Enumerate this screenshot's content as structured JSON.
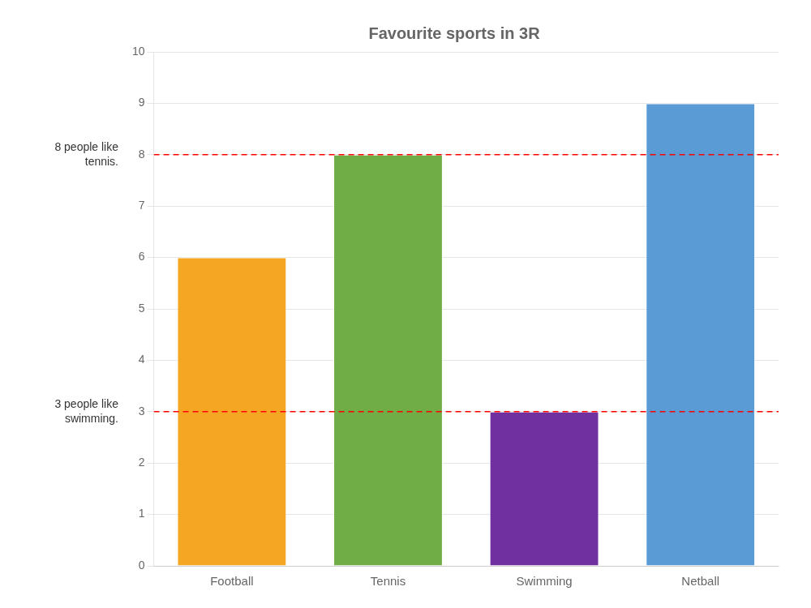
{
  "chart_data": {
    "type": "bar",
    "title": "Favourite sports in 3R",
    "categories": [
      "Football",
      "Tennis",
      "Swimming",
      "Netball"
    ],
    "values": [
      6,
      8,
      3,
      9
    ],
    "colors": [
      "#f5a623",
      "#70ad47",
      "#7030a0",
      "#5b9bd5"
    ],
    "ylim": [
      0,
      10
    ],
    "yticks": [
      0,
      1,
      2,
      3,
      4,
      5,
      6,
      7,
      8,
      9,
      10
    ],
    "grid": true,
    "annotations": [
      {
        "text": "8 people like\ntennis.",
        "y": 8,
        "color": "red",
        "line_style": "dashed"
      },
      {
        "text": "3 people like\nswimming.",
        "y": 3,
        "color": "red",
        "line_style": "dashed"
      }
    ]
  }
}
